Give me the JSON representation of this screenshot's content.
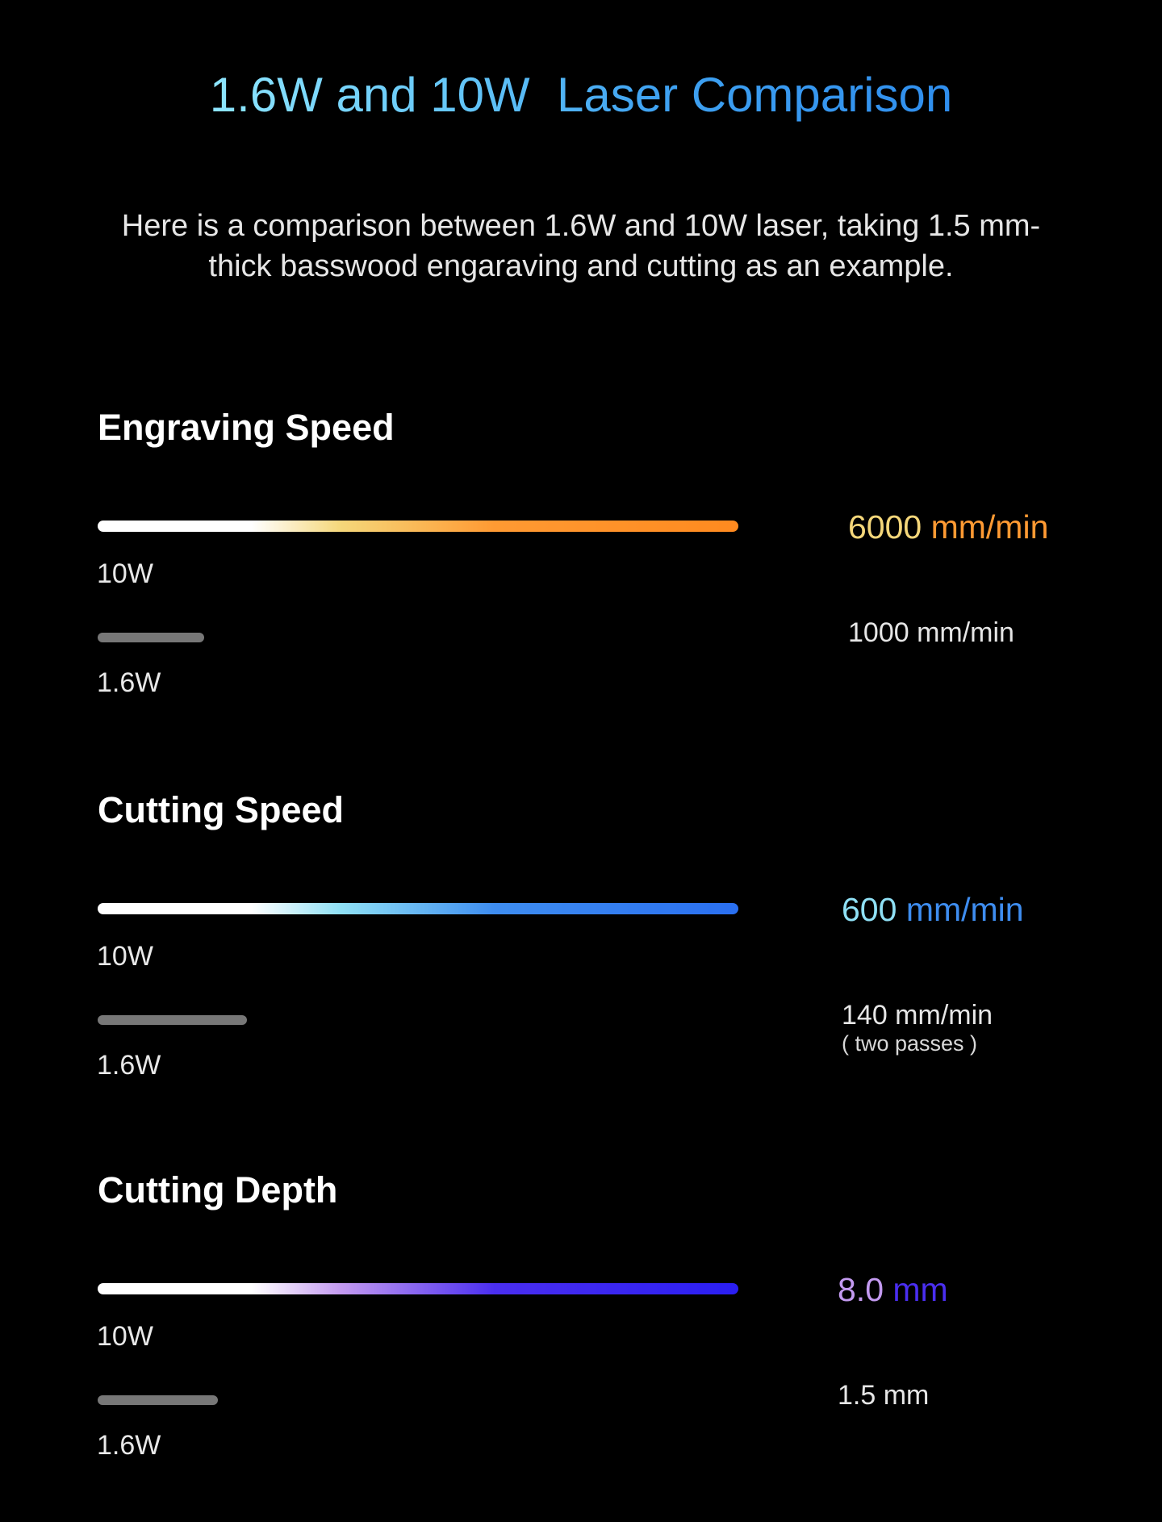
{
  "title": "1.6W and 10W  Laser Comparison",
  "subtitle": "Here is a comparison between 1.6W and 10W laser, taking 1.5 mm-thick basswood engaraving and cutting as an example.",
  "chart_data": [
    {
      "type": "bar",
      "title": "Engraving Speed",
      "categories": [
        "10W",
        "1.6W"
      ],
      "values": [
        6000,
        1000
      ],
      "value_labels": [
        "6000 mm/min",
        "1000 mm/min"
      ],
      "high_value_num": "6000",
      "high_value_unit": " mm/min",
      "unit": "mm/min",
      "accent_color": "#ff8a1f",
      "gradient": [
        "#ffffff",
        "#ffffff",
        "#f5d77a",
        "#ff9a33",
        "#ff8a1f"
      ]
    },
    {
      "type": "bar",
      "title": "Cutting Speed",
      "categories": [
        "10W",
        "1.6W"
      ],
      "values": [
        600,
        140
      ],
      "value_labels": [
        "600 mm/min",
        "140 mm/min"
      ],
      "high_value_num": "600",
      "high_value_unit": " mm/min",
      "unit": "mm/min",
      "note": "( two passes )",
      "accent_color": "#2a7df0",
      "gradient": [
        "#ffffff",
        "#ffffff",
        "#8fe0f5",
        "#3e8df0",
        "#2a6ff0"
      ]
    },
    {
      "type": "bar",
      "title": "Cutting Depth",
      "categories": [
        "10W",
        "1.6W"
      ],
      "values": [
        8.0,
        1.5
      ],
      "value_labels": [
        "8.0 mm",
        "1.5 mm"
      ],
      "high_value_num": "8.0",
      "high_value_unit": " mm",
      "unit": "mm",
      "accent_color": "#2d1ef0",
      "gradient": [
        "#ffffff",
        "#ffffff",
        "#c39af0",
        "#4a2ef0",
        "#2a1ef2"
      ]
    }
  ]
}
